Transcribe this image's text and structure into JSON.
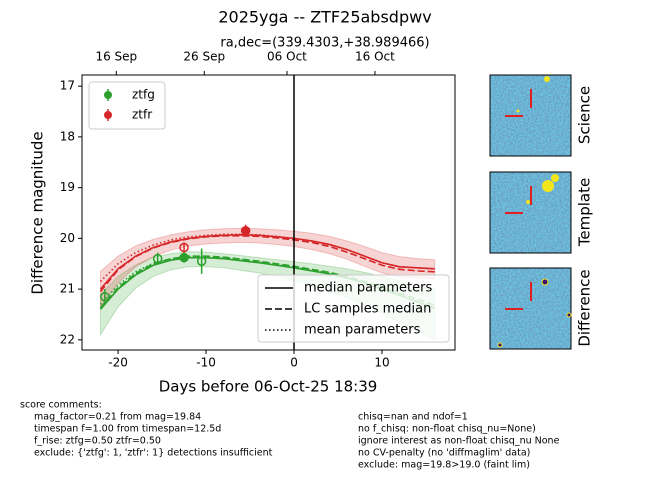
{
  "chart_data": {
    "type": "lightcurve",
    "title": "2025yga -- ZTF25absdpwv",
    "subtitle": "ra,dec=(339.4303,+38.989466)",
    "xlabel": "Days before 06-Oct-25 18:39",
    "ylabel": "Difference magnitude",
    "xlim": [
      -24.1,
      18.3
    ],
    "ylim": [
      16.78,
      22.2
    ],
    "y_inverted": true,
    "xticks": [
      -20,
      -10,
      0,
      10
    ],
    "yticks": [
      17,
      18,
      19,
      20,
      21,
      22
    ],
    "top_xticks": [
      {
        "value": -20.2,
        "label": "16 Sep"
      },
      {
        "value": -10.2,
        "label": "26 Sep"
      },
      {
        "value": -0.8,
        "label": "06 Oct"
      },
      {
        "value": 9.2,
        "label": "16 Oct"
      }
    ],
    "vline": 0,
    "legend_loc": "upper left",
    "style_legend_loc": "lower right",
    "series": [
      {
        "name": "ztfg",
        "color": "#2ca02c",
        "x": [
          -21.5,
          -15.5,
          -12.5,
          -10.5
        ],
        "values": [
          21.15,
          20.4,
          20.38,
          20.45
        ],
        "errors": [
          0.15,
          0.12,
          0.1,
          0.25
        ],
        "filled": [
          false,
          false,
          true,
          false
        ]
      },
      {
        "name": "ztfr",
        "color": "#d62728",
        "x": [
          -12.5,
          -5.5
        ],
        "values": [
          20.18,
          19.85
        ],
        "errors": [
          0.1,
          0.12
        ],
        "filled": [
          false,
          true
        ]
      }
    ],
    "line_styles": [
      {
        "name": "median parameters",
        "dash": "solid"
      },
      {
        "name": "LC samples median",
        "dash": "dashed"
      },
      {
        "name": "mean parameters",
        "dash": "dotted"
      }
    ],
    "models": [
      {
        "color": "#2ca02c",
        "x": [
          -22,
          -20,
          -18,
          -16,
          -14,
          -12,
          -10,
          -8,
          -6,
          -4,
          -2,
          0,
          2,
          4,
          6,
          8,
          10,
          12,
          14,
          16
        ],
        "median": [
          21.4,
          21.0,
          20.72,
          20.53,
          20.43,
          20.38,
          20.38,
          20.4,
          20.44,
          20.48,
          20.53,
          20.58,
          20.64,
          20.7,
          20.78,
          20.88,
          21.0,
          21.12,
          21.25,
          21.38
        ],
        "samples_median": [
          21.37,
          20.97,
          20.69,
          20.5,
          20.4,
          20.35,
          20.35,
          20.37,
          20.41,
          20.45,
          20.5,
          20.55,
          20.61,
          20.67,
          20.75,
          20.85,
          20.96,
          21.08,
          21.2,
          21.32
        ],
        "mean": [
          21.3,
          20.92,
          20.66,
          20.49,
          20.4,
          20.36,
          20.37,
          20.39,
          20.43,
          20.47,
          20.52,
          20.57,
          20.63,
          20.69,
          20.77,
          20.87,
          20.99,
          21.11,
          21.24,
          21.37
        ],
        "band_low": [
          21.1,
          20.75,
          20.52,
          20.37,
          20.3,
          20.26,
          20.27,
          20.3,
          20.34,
          20.38,
          20.42,
          20.46,
          20.5,
          20.55,
          20.6,
          20.67,
          20.75,
          20.83,
          20.92,
          21.0
        ],
        "band_high": [
          21.9,
          21.35,
          20.98,
          20.75,
          20.62,
          20.56,
          20.56,
          20.58,
          20.63,
          20.68,
          20.75,
          20.83,
          20.93,
          21.04,
          21.17,
          21.32,
          21.48,
          21.65,
          21.82,
          22.0
        ]
      },
      {
        "color": "#d62728",
        "x": [
          -22,
          -20,
          -18,
          -16,
          -14,
          -12,
          -10,
          -8,
          -6,
          -4,
          -2,
          0,
          2,
          4,
          6,
          8,
          10,
          12,
          14,
          16
        ],
        "median": [
          21.0,
          20.6,
          20.35,
          20.18,
          20.07,
          20.0,
          19.96,
          19.94,
          19.93,
          19.94,
          19.97,
          20.0,
          20.05,
          20.12,
          20.22,
          20.35,
          20.48,
          20.56,
          20.58,
          20.6
        ],
        "samples_median": [
          21.05,
          20.62,
          20.36,
          20.19,
          20.08,
          20.01,
          19.97,
          19.95,
          19.95,
          19.96,
          19.99,
          20.03,
          20.08,
          20.16,
          20.27,
          20.4,
          20.53,
          20.61,
          20.64,
          20.66
        ],
        "mean": [
          20.85,
          20.5,
          20.28,
          20.13,
          20.03,
          19.97,
          19.94,
          19.92,
          19.92,
          19.93,
          19.96,
          20.0,
          20.05,
          20.12,
          20.22,
          20.35,
          20.48,
          20.56,
          20.58,
          20.6
        ],
        "band_low": [
          20.65,
          20.35,
          20.15,
          20.02,
          19.93,
          19.87,
          19.83,
          19.81,
          19.8,
          19.81,
          19.83,
          19.86,
          19.9,
          19.96,
          20.05,
          20.16,
          20.28,
          20.36,
          20.4,
          20.42
        ],
        "band_high": [
          21.35,
          20.88,
          20.56,
          20.36,
          20.23,
          20.15,
          20.11,
          20.09,
          20.08,
          20.09,
          20.12,
          20.16,
          20.22,
          20.3,
          20.41,
          20.55,
          20.68,
          20.76,
          20.78,
          20.8
        ]
      }
    ]
  },
  "cutouts": [
    "Science",
    "Template",
    "Difference"
  ],
  "comments": {
    "heading": "score comments:",
    "left": [
      "mag_factor=0.21 from mag=19.84",
      "timespan f=1.00 from timespan=12.5d",
      "f_rise: ztfg=0.50 ztfr=0.50",
      "exclude: {'ztfg': 1, 'ztfr': 1} detections insufficient"
    ],
    "right": [
      "chisq=nan and ndof=1",
      "no f_chisq: non-float chisq_nu=None)",
      "ignore interest as non-float chisq_nu None",
      "no CV-penalty (no 'diffmaglim' data)",
      "exclude: mag=19.8>19.0 (faint lim)"
    ]
  }
}
